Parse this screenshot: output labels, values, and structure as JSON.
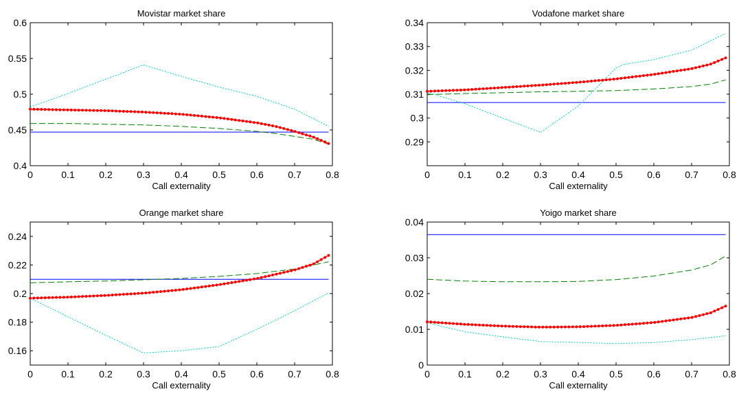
{
  "chart_data": [
    {
      "type": "line",
      "title": "Movistar market share",
      "xlabel": "Call externality",
      "ylabel": "",
      "xlim": [
        0,
        0.8
      ],
      "ylim": [
        0.4,
        0.6
      ],
      "xticks": [
        "0",
        "0.1",
        "0.2",
        "0.3",
        "0.4",
        "0.5",
        "0.6",
        "0.7",
        "0.8"
      ],
      "yticks": [
        "0.4",
        "0.45",
        "0.5",
        "0.55",
        "0.6"
      ],
      "series": [
        {
          "style": "solid",
          "color": "#0000ff",
          "x": [
            0,
            0.79
          ],
          "y": [
            0.447,
            0.447
          ]
        },
        {
          "style": "dashed",
          "color": "#008000",
          "x": [
            0,
            0.1,
            0.2,
            0.3,
            0.4,
            0.5,
            0.6,
            0.65,
            0.7,
            0.75,
            0.79
          ],
          "y": [
            0.459,
            0.459,
            0.458,
            0.457,
            0.455,
            0.452,
            0.448,
            0.445,
            0.441,
            0.437,
            0.43
          ]
        },
        {
          "style": "dotted",
          "color": "#00c8c8",
          "x": [
            0,
            0.1,
            0.2,
            0.3,
            0.4,
            0.5,
            0.6,
            0.7,
            0.79
          ],
          "y": [
            0.482,
            0.501,
            0.521,
            0.541,
            0.525,
            0.51,
            0.497,
            0.479,
            0.455
          ]
        },
        {
          "style": "marker",
          "color": "#ff0000",
          "x": [
            0,
            0.1,
            0.2,
            0.3,
            0.4,
            0.5,
            0.6,
            0.65,
            0.7,
            0.75,
            0.79
          ],
          "y": [
            0.479,
            0.478,
            0.477,
            0.475,
            0.472,
            0.467,
            0.46,
            0.455,
            0.448,
            0.44,
            0.431
          ]
        }
      ]
    },
    {
      "type": "line",
      "title": "Vodafone market share",
      "xlabel": "Call externality",
      "ylabel": "",
      "xlim": [
        0,
        0.8
      ],
      "ylim": [
        0.28,
        0.34
      ],
      "yticks_values": [
        0.29,
        0.3,
        0.31,
        0.32,
        0.33,
        0.34
      ],
      "xticks": [
        "0",
        "0.1",
        "0.2",
        "0.3",
        "0.4",
        "0.5",
        "0.6",
        "0.7",
        "0.8"
      ],
      "yticks": [
        "0.29",
        "0.3",
        "0.31",
        "0.32",
        "0.33",
        "0.34"
      ],
      "series": [
        {
          "style": "solid",
          "color": "#0000ff",
          "x": [
            0,
            0.79
          ],
          "y": [
            0.3065,
            0.3065
          ]
        },
        {
          "style": "dashed",
          "color": "#008000",
          "x": [
            0,
            0.1,
            0.2,
            0.3,
            0.4,
            0.5,
            0.6,
            0.7,
            0.75,
            0.79
          ],
          "y": [
            0.3098,
            0.3103,
            0.3106,
            0.311,
            0.3112,
            0.3115,
            0.3122,
            0.3132,
            0.3142,
            0.316
          ]
        },
        {
          "style": "dotted",
          "color": "#00c8c8",
          "x": [
            0,
            0.1,
            0.2,
            0.3,
            0.4,
            0.5,
            0.52,
            0.6,
            0.7,
            0.79
          ],
          "y": [
            0.3108,
            0.306,
            0.3,
            0.294,
            0.305,
            0.321,
            0.3225,
            0.3245,
            0.3285,
            0.3355
          ]
        },
        {
          "style": "marker",
          "color": "#ff0000",
          "x": [
            0,
            0.1,
            0.2,
            0.3,
            0.4,
            0.5,
            0.6,
            0.7,
            0.75,
            0.79
          ],
          "y": [
            0.3112,
            0.3118,
            0.3128,
            0.3138,
            0.315,
            0.3164,
            0.3183,
            0.3207,
            0.3226,
            0.3252
          ]
        }
      ]
    },
    {
      "type": "line",
      "title": "Orange market share",
      "xlabel": "Call externality",
      "ylabel": "",
      "xlim": [
        0,
        0.8
      ],
      "ylim": [
        0.15,
        0.25
      ],
      "yticks_values": [
        0.16,
        0.18,
        0.2,
        0.22,
        0.24
      ],
      "xticks": [
        "0",
        "0.1",
        "0.2",
        "0.3",
        "0.4",
        "0.5",
        "0.6",
        "0.7",
        "0.8"
      ],
      "yticks": [
        "0.16",
        "0.18",
        "0.2",
        "0.22",
        "0.24"
      ],
      "series": [
        {
          "style": "solid",
          "color": "#0000ff",
          "x": [
            0,
            0.79
          ],
          "y": [
            0.21,
            0.21
          ]
        },
        {
          "style": "dashed",
          "color": "#008000",
          "x": [
            0,
            0.1,
            0.2,
            0.3,
            0.4,
            0.5,
            0.6,
            0.7,
            0.79
          ],
          "y": [
            0.2075,
            0.2082,
            0.2088,
            0.2096,
            0.2106,
            0.212,
            0.214,
            0.2172,
            0.2222
          ]
        },
        {
          "style": "dotted",
          "color": "#00c8c8",
          "x": [
            0,
            0.1,
            0.2,
            0.3,
            0.4,
            0.5,
            0.6,
            0.7,
            0.79
          ],
          "y": [
            0.1968,
            0.1838,
            0.1708,
            0.1585,
            0.16,
            0.163,
            0.175,
            0.188,
            0.2005
          ]
        },
        {
          "style": "marker",
          "color": "#ff0000",
          "x": [
            0,
            0.1,
            0.2,
            0.3,
            0.4,
            0.5,
            0.6,
            0.7,
            0.75,
            0.79
          ],
          "y": [
            0.1968,
            0.1975,
            0.1987,
            0.2003,
            0.2027,
            0.2062,
            0.2105,
            0.2165,
            0.2207,
            0.2267
          ]
        }
      ]
    },
    {
      "type": "line",
      "title": "Yoigo market share",
      "xlabel": "Call externality",
      "ylabel": "",
      "xlim": [
        0,
        0.8
      ],
      "ylim": [
        0,
        0.04
      ],
      "yticks_values": [
        0,
        0.01,
        0.02,
        0.03,
        0.04
      ],
      "xticks": [
        "0",
        "0.1",
        "0.2",
        "0.3",
        "0.4",
        "0.5",
        "0.6",
        "0.7",
        "0.8"
      ],
      "yticks": [
        "0",
        "0.01",
        "0.02",
        "0.03",
        "0.04"
      ],
      "series": [
        {
          "style": "solid",
          "color": "#0000ff",
          "x": [
            0,
            0.79
          ],
          "y": [
            0.0365,
            0.0365
          ]
        },
        {
          "style": "dashed",
          "color": "#008000",
          "x": [
            0,
            0.1,
            0.2,
            0.3,
            0.4,
            0.5,
            0.6,
            0.7,
            0.75,
            0.79
          ],
          "y": [
            0.024,
            0.0235,
            0.0233,
            0.0233,
            0.0234,
            0.0239,
            0.0249,
            0.0266,
            0.028,
            0.0305
          ]
        },
        {
          "style": "dotted",
          "color": "#00c8c8",
          "x": [
            0,
            0.1,
            0.2,
            0.3,
            0.4,
            0.5,
            0.6,
            0.7,
            0.79
          ],
          "y": [
            0.0118,
            0.0093,
            0.0079,
            0.0066,
            0.0063,
            0.006,
            0.0063,
            0.0071,
            0.0082
          ]
        },
        {
          "style": "marker",
          "color": "#ff0000",
          "x": [
            0,
            0.1,
            0.2,
            0.3,
            0.4,
            0.5,
            0.6,
            0.7,
            0.75,
            0.79
          ],
          "y": [
            0.0121,
            0.0114,
            0.0109,
            0.0106,
            0.0107,
            0.0111,
            0.0119,
            0.0133,
            0.0146,
            0.0165
          ]
        }
      ]
    }
  ]
}
